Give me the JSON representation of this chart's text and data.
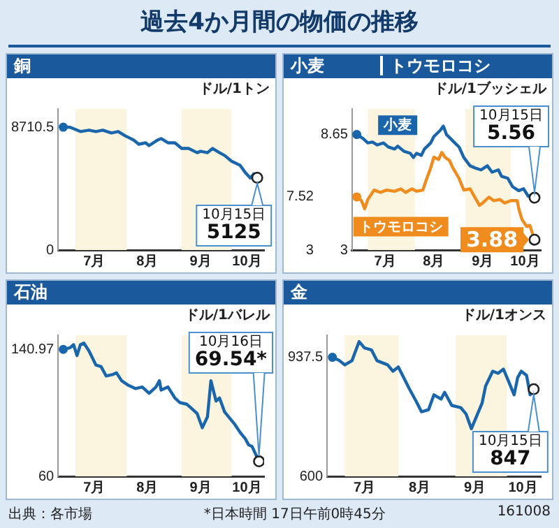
{
  "chart_data": [
    {
      "type": "line",
      "title": "銅",
      "ylabel": "ドル/1トン",
      "xlim": [
        "--06-21",
        "--10-19"
      ],
      "xticks": [
        {
          "value": "--07-12",
          "label": "7月"
        },
        {
          "value": "--08-12",
          "label": "8月"
        },
        {
          "value": "--09-12",
          "label": "9月"
        },
        {
          "value": "--10-09",
          "label": "10月"
        }
      ],
      "ylim": [
        0,
        10000
      ],
      "yticks": [
        0,
        8710.5
      ],
      "grid": false,
      "bands": [
        {
          "axis": "x",
          "from": "--07-01",
          "to": "--07-31",
          "color": "#fbf4de"
        },
        {
          "axis": "x",
          "from": "--09-01",
          "to": "--09-30",
          "color": "#fbf4de"
        }
      ],
      "annotations": [
        "10月15日"
      ],
      "series": [
        {
          "color": "#1a66ad",
          "x": [
            "--06-24",
            "--06-28",
            "--07-04",
            "--07-09",
            "--07-13",
            "--07-17",
            "--07-22",
            "--07-26",
            "--07-30",
            "--08-04",
            "--08-07",
            "--08-11",
            "--08-13",
            "--08-18",
            "--08-20",
            "--08-24",
            "--08-28",
            "--09-01",
            "--09-05",
            "--09-10",
            "--09-12",
            "--09-16",
            "--09-19",
            "--09-23",
            "--09-26",
            "--09-30",
            "--10-05",
            "--10-08",
            "--10-11",
            "--10-13",
            "--10-15"
          ],
          "values": [
            8710.5,
            8700,
            8400,
            8500,
            8400,
            8500,
            8300,
            8400,
            8100,
            7800,
            7500,
            7600,
            7400,
            7800,
            7900,
            7600,
            7600,
            7200,
            7200,
            6900,
            7000,
            6900,
            7200,
            6900,
            6700,
            6300,
            6000,
            5500,
            5100,
            5400,
            5125
          ],
          "value_labels": [
            null,
            null,
            null,
            null,
            null,
            null,
            null,
            null,
            null,
            null,
            null,
            null,
            null,
            null,
            null,
            null,
            null,
            null,
            null,
            null,
            null,
            null,
            null,
            null,
            null,
            null,
            null,
            null,
            null,
            null,
            "5125"
          ]
        }
      ]
    },
    {
      "type": "line",
      "title": "小麦",
      "subtitle": "トウモロコシ",
      "ylabel": "ドル/1ブッシェル",
      "xlim": [
        "--06-21",
        "--10-19"
      ],
      "xticks": [
        {
          "value": "--07-12",
          "label": "7月"
        },
        {
          "value": "--08-12",
          "label": "8月"
        },
        {
          "value": "--09-12",
          "label": "9月"
        },
        {
          "value": "--10-09",
          "label": "10月"
        }
      ],
      "ylim": [
        3,
        9.9
      ],
      "yticks": [
        3,
        8.65
      ],
      "y2lim": [
        3,
        15
      ],
      "y2ticks": [
        3,
        7.52
      ],
      "grid": false,
      "bands": [
        {
          "axis": "x",
          "from": "--07-01",
          "to": "--07-31",
          "color": "#fbf4de"
        },
        {
          "axis": "x",
          "from": "--09-01",
          "to": "--09-30",
          "color": "#fbf4de"
        }
      ],
      "annotations": [
        "10月15日"
      ],
      "series": [
        {
          "name": "小麦",
          "color": "#1a66ad",
          "x": [
            "--06-24",
            "--06-28",
            "--07-01",
            "--07-04",
            "--07-07",
            "--07-11",
            "--07-14",
            "--07-18",
            "--07-20",
            "--07-24",
            "--07-28",
            "--07-30",
            "--08-01",
            "--08-04",
            "--08-06",
            "--08-10",
            "--08-12",
            "--08-16",
            "--08-18",
            "--08-20",
            "--08-24",
            "--08-28",
            "--08-31",
            "--09-04",
            "--09-07",
            "--09-11",
            "--09-15",
            "--09-18",
            "--09-22",
            "--09-24",
            "--09-28",
            "--10-01",
            "--10-05",
            "--10-08",
            "--10-11",
            "--10-13",
            "--10-15"
          ],
          "values": [
            8.65,
            8.45,
            8.24,
            8.28,
            8.14,
            8.24,
            8.04,
            7.94,
            8.08,
            7.83,
            7.73,
            7.53,
            7.73,
            7.63,
            7.94,
            8.24,
            8.55,
            8.85,
            9.06,
            8.65,
            8.34,
            8.04,
            7.53,
            7.12,
            7.02,
            6.92,
            7.12,
            6.81,
            6.92,
            6.61,
            6.51,
            6.1,
            5.9,
            6.0,
            5.63,
            5.69,
            5.56
          ],
          "value_labels": [
            null,
            null,
            null,
            null,
            null,
            null,
            null,
            null,
            null,
            null,
            null,
            null,
            null,
            null,
            null,
            null,
            null,
            null,
            null,
            null,
            null,
            null,
            null,
            null,
            null,
            null,
            null,
            null,
            null,
            null,
            null,
            null,
            null,
            null,
            null,
            null,
            "5.56"
          ]
        },
        {
          "name": "トウモロコシ",
          "color": "#f08c1e",
          "axis": "y2",
          "x": [
            "--06-24",
            "--06-27",
            "--06-29",
            "--07-01",
            "--07-05",
            "--07-09",
            "--07-13",
            "--07-18",
            "--07-22",
            "--07-25",
            "--07-29",
            "--08-01",
            "--08-05",
            "--08-07",
            "--08-10",
            "--08-12",
            "--08-15",
            "--08-17",
            "--08-19",
            "--08-22",
            "--08-24",
            "--08-28",
            "--08-31",
            "--09-04",
            "--09-07",
            "--09-10",
            "--09-12",
            "--09-16",
            "--09-19",
            "--09-23",
            "--09-26",
            "--09-30",
            "--10-04",
            "--10-05",
            "--10-07",
            "--10-10",
            "--10-12",
            "--10-15"
          ],
          "values": [
            7.52,
            7.2,
            6.5,
            7.3,
            8.1,
            7.9,
            8.1,
            8.0,
            8.2,
            7.9,
            8.2,
            8.0,
            8.1,
            8.9,
            10.0,
            10.9,
            10.7,
            11.3,
            10.9,
            10.6,
            10.0,
            9.1,
            8.1,
            8.2,
            7.5,
            6.8,
            7.0,
            7.5,
            7.2,
            7.3,
            7.0,
            7.2,
            7.2,
            6.5,
            5.6,
            5.0,
            5.1,
            3.88
          ],
          "value_labels": [
            null,
            null,
            null,
            null,
            null,
            null,
            null,
            null,
            null,
            null,
            null,
            null,
            null,
            null,
            null,
            null,
            null,
            null,
            null,
            null,
            null,
            null,
            null,
            null,
            null,
            null,
            null,
            null,
            null,
            null,
            null,
            null,
            null,
            null,
            null,
            null,
            null,
            "3.88"
          ]
        }
      ]
    },
    {
      "type": "line",
      "title": "石油",
      "ylabel": "ドル/1バレル",
      "xlim": [
        "--06-21",
        "--10-19"
      ],
      "xticks": [
        {
          "value": "--07-12",
          "label": "7月"
        },
        {
          "value": "--08-12",
          "label": "8月"
        },
        {
          "value": "--09-12",
          "label": "9月"
        },
        {
          "value": "--10-09",
          "label": "10月"
        }
      ],
      "ylim": [
        60,
        150
      ],
      "yticks": [
        60,
        140.97
      ],
      "grid": false,
      "bands": [
        {
          "axis": "x",
          "from": "--07-01",
          "to": "--07-31",
          "color": "#fbf4de"
        },
        {
          "axis": "x",
          "from": "--09-01",
          "to": "--09-30",
          "color": "#fbf4de"
        }
      ],
      "annotations": [
        "10月16日"
      ],
      "series": [
        {
          "color": "#1a66ad",
          "x": [
            "--06-24",
            "--06-28",
            "--06-30",
            "--07-02",
            "--07-04",
            "--07-06",
            "--07-09",
            "--07-13",
            "--07-16",
            "--07-19",
            "--07-23",
            "--07-25",
            "--07-28",
            "--08-01",
            "--08-05",
            "--08-09",
            "--08-13",
            "--08-17",
            "--08-19",
            "--08-20",
            "--08-24",
            "--08-28",
            "--08-31",
            "--09-04",
            "--09-07",
            "--09-10",
            "--09-13",
            "--09-16",
            "--09-18",
            "--09-21",
            "--09-23",
            "--09-26",
            "--09-29",
            "--10-02",
            "--10-05",
            "--10-08",
            "--10-10",
            "--10-12",
            "--10-16"
          ],
          "values": [
            140.97,
            142,
            144,
            137,
            144,
            145,
            140,
            131,
            130,
            124,
            125,
            126,
            121,
            118,
            116,
            117,
            113,
            117,
            121,
            115,
            117,
            110,
            107,
            106,
            103,
            100,
            91,
            98,
            121,
            108,
            110,
            101,
            97,
            93,
            88,
            84,
            80,
            79,
            69.54
          ],
          "value_labels": [
            null,
            null,
            null,
            null,
            null,
            null,
            null,
            null,
            null,
            null,
            null,
            null,
            null,
            null,
            null,
            null,
            null,
            null,
            null,
            null,
            null,
            null,
            null,
            null,
            null,
            null,
            null,
            null,
            null,
            null,
            null,
            null,
            null,
            null,
            null,
            null,
            null,
            null,
            "69.54*"
          ]
        }
      ]
    },
    {
      "type": "line",
      "title": "金",
      "ylabel": "ドル/1オンス",
      "xlim": [
        "--06-21",
        "--10-19"
      ],
      "xticks": [
        {
          "value": "--07-12",
          "label": "7月"
        },
        {
          "value": "--08-12",
          "label": "8月"
        },
        {
          "value": "--09-12",
          "label": "9月"
        },
        {
          "value": "--10-09",
          "label": "10月"
        }
      ],
      "ylim": [
        600,
        1000
      ],
      "yticks": [
        600,
        937.5
      ],
      "grid": false,
      "bands": [
        {
          "axis": "x",
          "from": "--07-01",
          "to": "--07-31",
          "color": "#fbf4de"
        },
        {
          "axis": "x",
          "from": "--09-01",
          "to": "--09-30",
          "color": "#fbf4de"
        }
      ],
      "annotations": [
        "10月15日"
      ],
      "series": [
        {
          "color": "#1a66ad",
          "x": [
            "--06-24",
            "--06-28",
            "--07-01",
            "--07-05",
            "--07-09",
            "--07-12",
            "--07-16",
            "--07-19",
            "--07-22",
            "--07-25",
            "--07-28",
            "--07-31",
            "--08-03",
            "--08-06",
            "--08-10",
            "--08-13",
            "--08-17",
            "--08-20",
            "--08-24",
            "--08-26",
            "--08-30",
            "--09-04",
            "--09-07",
            "--09-10",
            "--09-13",
            "--09-16",
            "--09-18",
            "--09-22",
            "--09-25",
            "--09-28",
            "--10-01",
            "--10-04",
            "--10-06",
            "--10-08",
            "--10-11",
            "--10-13",
            "--10-15"
          ],
          "values": [
            937.5,
            928,
            916,
            928,
            982,
            964,
            958,
            928,
            922,
            916,
            898,
            910,
            880,
            850,
            813,
            783,
            789,
            831,
            819,
            838,
            801,
            795,
            777,
            735,
            771,
            807,
            856,
            898,
            892,
            904,
            868,
            831,
            880,
            898,
            886,
            831,
            847
          ],
          "value_labels": [
            null,
            null,
            null,
            null,
            null,
            null,
            null,
            null,
            null,
            null,
            null,
            null,
            null,
            null,
            null,
            null,
            null,
            null,
            null,
            null,
            null,
            null,
            null,
            null,
            null,
            null,
            null,
            null,
            null,
            null,
            null,
            null,
            null,
            null,
            null,
            null,
            "847"
          ]
        }
      ]
    },
    {
      "type": "other",
      "title": "過去4か月間の物価の推移",
      "annotations": [
        "出典：各市場",
        "*日本時間 17日午前0時45分",
        "161008"
      ]
    }
  ]
}
